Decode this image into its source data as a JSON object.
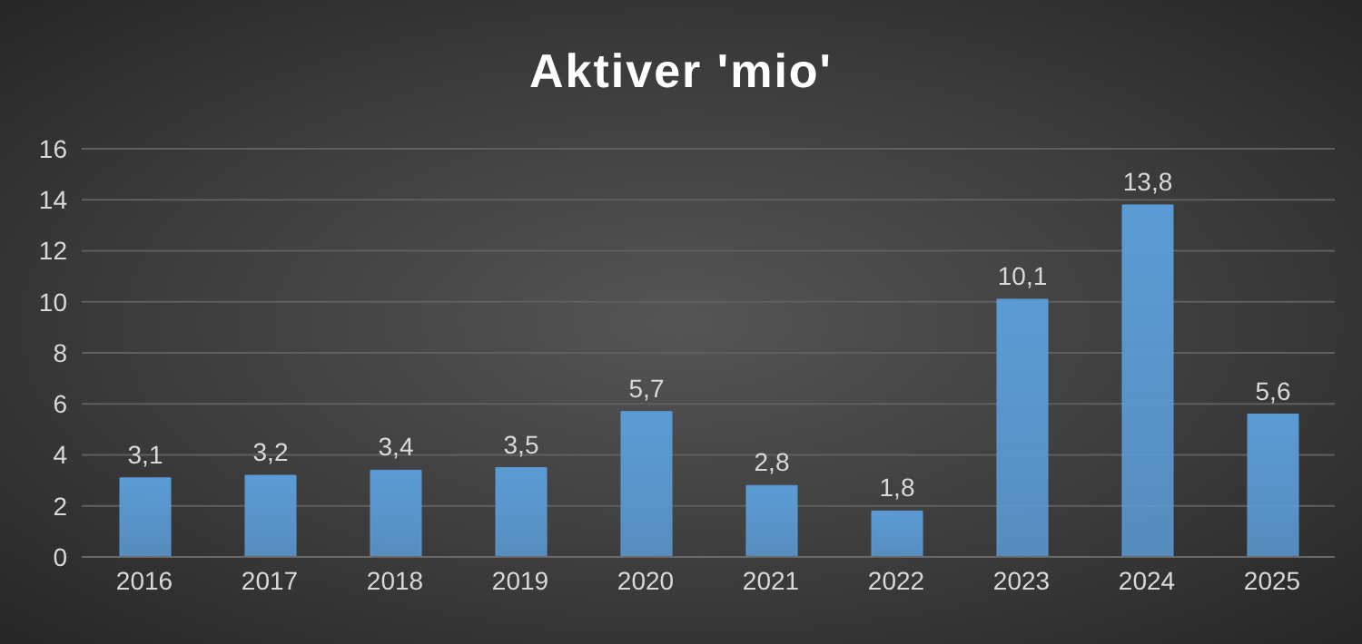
{
  "chart_data": {
    "type": "bar",
    "title": "Aktiver 'mio'",
    "categories": [
      "2016",
      "2017",
      "2018",
      "2019",
      "2020",
      "2021",
      "2022",
      "2023",
      "2024",
      "2025"
    ],
    "values": [
      3.1,
      3.2,
      3.4,
      3.5,
      5.7,
      2.8,
      1.8,
      10.1,
      13.8,
      5.6
    ],
    "value_labels": [
      "3,1",
      "3,2",
      "3,4",
      "3,5",
      "5,7",
      "2,8",
      "1,8",
      "10,1",
      "13,8",
      "5,6"
    ],
    "color": "#5b9bd5",
    "ylim": [
      0,
      16
    ],
    "yticks": [
      0,
      2,
      4,
      6,
      8,
      10,
      12,
      14,
      16
    ],
    "grid": "y",
    "legend": false
  }
}
